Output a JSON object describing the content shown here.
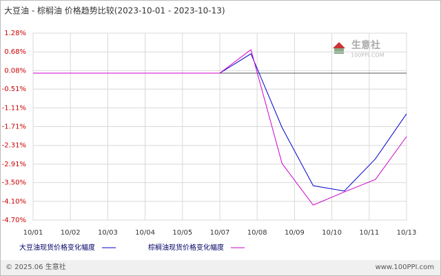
{
  "chart_data": {
    "type": "line",
    "title": "大豆油 - 棕榈油 价格趋势比较(2023-10-01 - 2023-10-13)",
    "x": [
      "10/01",
      "10/02",
      "10/03",
      "10/04",
      "10/05",
      "10/06",
      "10/07",
      "10/08",
      "10/09",
      "10/10",
      "10/11",
      "10/12",
      "10/13"
    ],
    "x_labels": [
      "10/01",
      "10/02",
      "10/03",
      "10/04",
      "10/05",
      "10/07",
      "10/08",
      "10/09",
      "10/10",
      "10/11",
      "10/13"
    ],
    "series": [
      {
        "name": "大豆油现货价格变化幅度",
        "color": "#0000cc",
        "values": [
          0,
          0,
          0,
          0,
          0,
          0,
          0,
          0.62,
          -1.74,
          -3.6,
          -3.77,
          -2.74,
          -1.3
        ]
      },
      {
        "name": "棕榈油现货价格变化幅度",
        "color": "#cc00cc",
        "values": [
          0,
          0,
          0,
          0,
          0,
          0,
          0,
          0.75,
          -2.89,
          -4.22,
          -3.8,
          -3.4,
          -2.03
        ]
      }
    ],
    "ylim": [
      -4.7,
      1.28
    ],
    "yticks": [
      {
        "value": 1.28,
        "label": "1.28%"
      },
      {
        "value": 0.68,
        "label": "0.68%"
      },
      {
        "value": 0.08,
        "label": "0.08%"
      },
      {
        "value": -0.51,
        "label": "-0.51%"
      },
      {
        "value": -1.11,
        "label": "-1.11%"
      },
      {
        "value": -1.71,
        "label": "-1.71%"
      },
      {
        "value": -2.31,
        "label": "-2.31%"
      },
      {
        "value": -2.91,
        "label": "-2.91%"
      },
      {
        "value": -3.5,
        "label": "-3.50%"
      },
      {
        "value": -4.1,
        "label": "-4.10%"
      },
      {
        "value": -4.7,
        "label": "-4.70%"
      }
    ],
    "grid": true,
    "watermark": "生意社",
    "watermark_sub": "100PPI.COM",
    "footer_left": "© 2025.06 生意社",
    "footer_right": "www.100PPI.com"
  }
}
